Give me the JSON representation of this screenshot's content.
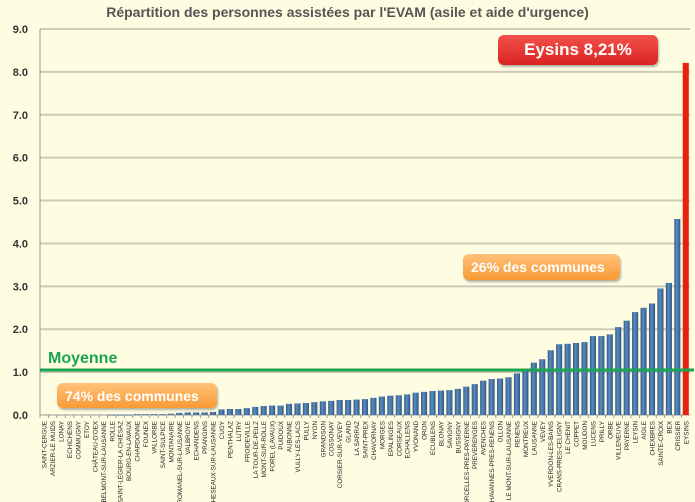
{
  "chart_data": {
    "type": "bar",
    "title": "Répartition des personnes assistées par l'EVAM (asile et aide d'urgence)",
    "xlabel": "",
    "ylabel": "",
    "ylim": [
      0,
      9
    ],
    "yticks": [
      "0.0",
      "1.0",
      "2.0",
      "3.0",
      "4.0",
      "5.0",
      "6.0",
      "7.0",
      "8.0",
      "9.0"
    ],
    "grid": true,
    "categories": [
      "SAINT-CERGUE",
      "ARZIER-LE MUIDS",
      "LONAY",
      "ECHICHENS",
      "COMMUGNY",
      "ETOY",
      "CHÂTEAU-D'OEX",
      "BELMONT-SUR-LAUSANNE",
      "ROLLE",
      "SAINT-LÉGIER-LA CHIÉSAZ",
      "BOURG-EN-LAVAUX",
      "CHARDONNE",
      "FOUNEX",
      "VALLORBE",
      "SAINT-SULPICE",
      "MONTANAIRE",
      "ROMANEL-SUR-LAUSANNE",
      "VALBROYE",
      "ECHANDENS",
      "PRANGINS",
      "CHESEAUX-SUR-LAUSANNE",
      "CUGY",
      "PENTHALAZ",
      "LUTRY",
      "FROIDEVILLE",
      "LA TOUR-DE-PEILZ",
      "MONT-SUR-ROLLE",
      "FOREL (LAVAUX)",
      "PUIDOUX",
      "AUBONNE",
      "VULLY-LES-LACS",
      "PULLY",
      "NYON",
      "GRANDSON",
      "COSSONAY",
      "CORSIER-SUR-VEVEY",
      "GLAND",
      "LA SARRAZ",
      "SAINT-PREX",
      "CHAVORNAY",
      "MORGES",
      "EPALINGES",
      "CORSEAUX",
      "ECHALLENS",
      "YVONAND",
      "ORON",
      "ECUBLENS",
      "BLONAY",
      "SAVIGNY",
      "BUSSIGNY",
      "CORCELLES-PRES-PAYERNE",
      "PREVERENGES",
      "AVENCHES",
      "CHAVANNES-PRES-RENENS",
      "OLLON",
      "LE MONT-SUR-LAUSANNE",
      "RENENS",
      "MONTREUX",
      "LAUSANNE",
      "VEVEY",
      "YVERDON-LES-BAINS",
      "CRANS-PRES-CELIGNY",
      "LE CHENIT",
      "COPPET",
      "MOUDON",
      "LUCENS",
      "PRILLY",
      "ORBE",
      "VILLENEUVE",
      "PAYERNE",
      "LEYSIN",
      "AIGLE",
      "CHEXBRES",
      "SAINTE-CROIX",
      "BEX",
      "CRISSIER",
      "EYSINS"
    ],
    "values": [
      0,
      0,
      0,
      0,
      0,
      0,
      0,
      0,
      0.01,
      0.01,
      0.01,
      0.02,
      0.02,
      0.02,
      0.02,
      0.03,
      0.05,
      0.06,
      0.06,
      0.06,
      0.07,
      0.13,
      0.14,
      0.14,
      0.16,
      0.19,
      0.21,
      0.22,
      0.22,
      0.26,
      0.27,
      0.28,
      0.3,
      0.32,
      0.33,
      0.35,
      0.35,
      0.36,
      0.37,
      0.4,
      0.43,
      0.45,
      0.46,
      0.48,
      0.52,
      0.54,
      0.56,
      0.57,
      0.58,
      0.61,
      0.66,
      0.72,
      0.8,
      0.84,
      0.85,
      0.88,
      0.97,
      1.02,
      1.22,
      1.3,
      1.51,
      1.65,
      1.66,
      1.68,
      1.7,
      1.84,
      1.84,
      1.88,
      2.05,
      2.2,
      2.4,
      2.5,
      2.6,
      2.95,
      3.08,
      4.57,
      8.21
    ],
    "highlight_index": 76,
    "average": 1.05,
    "average_label": "Moyenne",
    "annotations": {
      "highlight": "Eysins 8,21%",
      "upper_share": "26% des communes",
      "lower_share": "74% des communes"
    },
    "colors": {
      "bar": "#4a76a8",
      "highlight": "#e8200f",
      "average": "#1aa552",
      "grid": "#cfcab8"
    }
  }
}
